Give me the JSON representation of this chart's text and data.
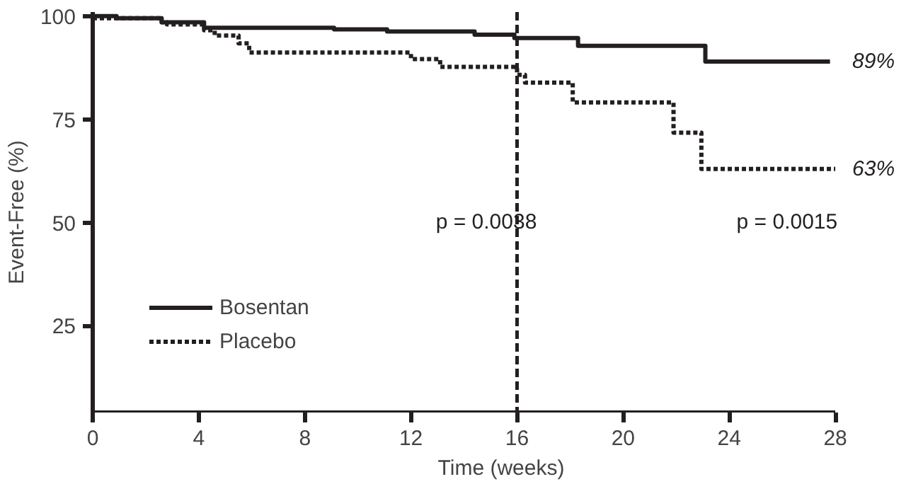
{
  "chart_data": {
    "type": "step",
    "xlabel": "Time (weeks)",
    "ylabel": "Event-Free (%)",
    "xlim": [
      0,
      28
    ],
    "ylim": [
      4,
      101
    ],
    "xticks": [
      0,
      4,
      8,
      12,
      16,
      20,
      24,
      28
    ],
    "yticks": [
      25,
      50,
      75,
      100
    ],
    "grid": false,
    "legend": "bottom left",
    "series": [
      {
        "name": "Bosentan",
        "color": "#231f20",
        "line_style": "solid",
        "x": [
          0,
          0.9,
          2.6,
          4.2,
          9.1,
          11.1,
          14.4,
          15.9,
          18.3,
          23.1,
          27.8
        ],
        "values": [
          100,
          99.5,
          98.5,
          97.2,
          96.8,
          96.3,
          95.5,
          94.7,
          92.8,
          89,
          89
        ]
      },
      {
        "name": "Placebo",
        "color": "#231f20",
        "line_style": "dotted",
        "x": [
          0,
          2.6,
          2.8,
          4.2,
          4.6,
          5.5,
          5.9,
          12.0,
          13.1,
          16.0,
          16.3,
          18.1,
          21.9,
          22.95,
          28
        ],
        "values": [
          99.5,
          98.5,
          98,
          96.6,
          95.3,
          93.4,
          91.2,
          89.6,
          87.7,
          85.8,
          83.9,
          79.1,
          71.8,
          63,
          63
        ]
      }
    ],
    "ref_lines": [
      {
        "axis": "x",
        "value": 16,
        "color": "#231f20",
        "line_style": "dashed"
      }
    ],
    "annotations": [
      {
        "text": "89%",
        "x": 28,
        "y": 89
      },
      {
        "text": "63%",
        "x": 28,
        "y": 63
      },
      "p = 0.0038",
      "p = 0.0015"
    ]
  }
}
